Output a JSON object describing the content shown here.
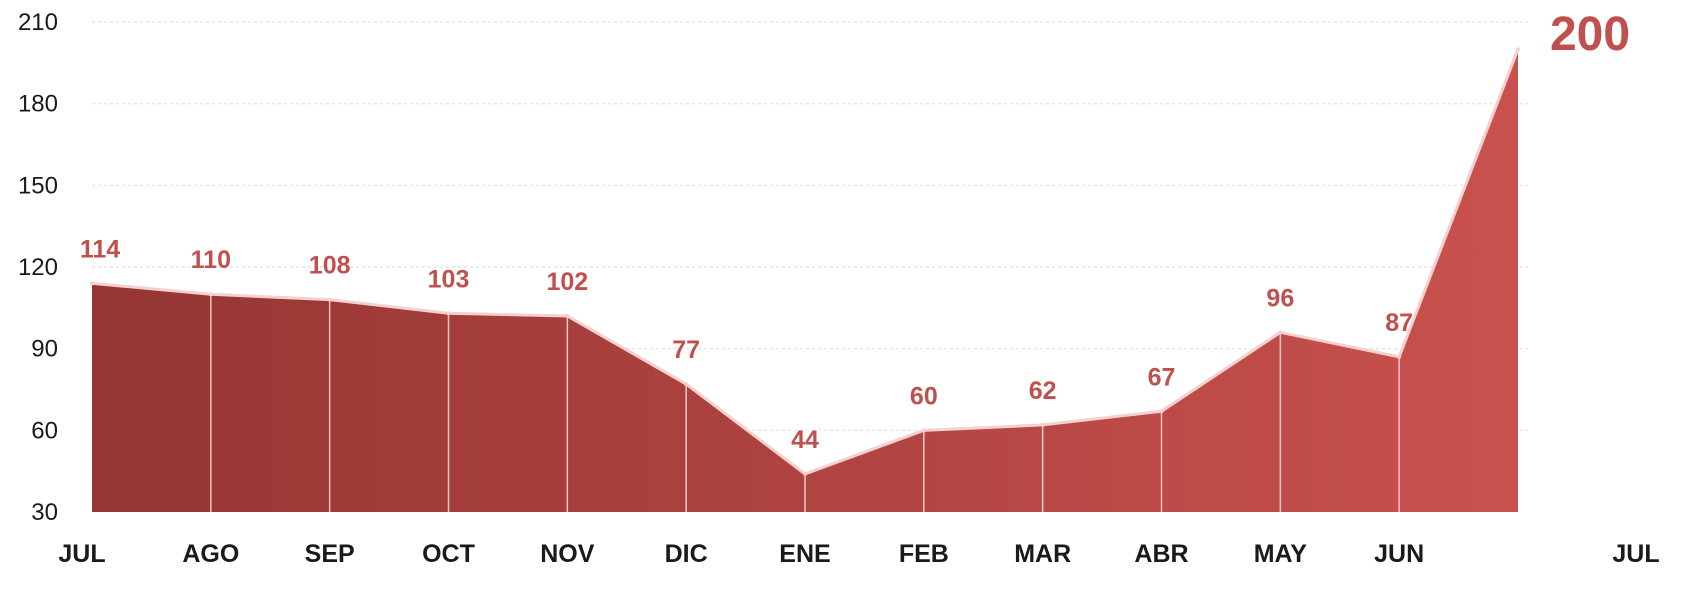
{
  "chart_data": {
    "type": "area",
    "categories": [
      "JUL",
      "AGO",
      "SEP",
      "OCT",
      "NOV",
      "DIC",
      "ENE",
      "FEB",
      "MAR",
      "ABR",
      "MAY",
      "JUN",
      "JUL"
    ],
    "values": [
      114,
      110,
      108,
      103,
      102,
      77,
      44,
      60,
      62,
      67,
      96,
      87,
      200
    ],
    "data_labels": [
      "114",
      "110",
      "108",
      "103",
      "102",
      "77",
      "44",
      "60",
      "62",
      "67",
      "96",
      "87",
      "200"
    ],
    "y_ticks": [
      "210",
      "180",
      "150",
      "120",
      "90",
      "60",
      "30"
    ],
    "ylim": [
      30,
      210
    ],
    "grid": true,
    "legend": "none",
    "colors": {
      "gradient_start": "#943634",
      "gradient_end": "#c9514e",
      "label": "#c0504d"
    }
  }
}
